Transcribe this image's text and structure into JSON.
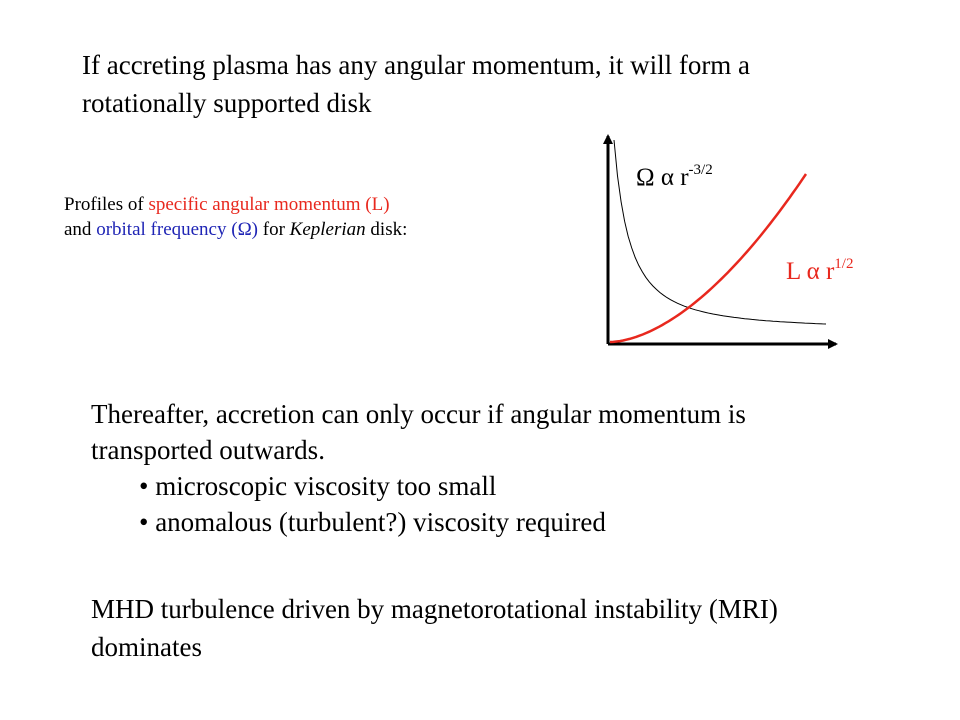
{
  "intro": {
    "line1": "If accreting plasma has any angular momentum, it will form a",
    "line2": "rotationally supported disk"
  },
  "profiles": {
    "prefix": "Profiles of ",
    "specific_label": "specific angular momentum (L)",
    "and": "and ",
    "orbital_label": "orbital frequency (Ω)",
    "for": " for ",
    "keplerian": "Keplerian",
    "suffix": " disk:"
  },
  "chart_data": {
    "type": "line",
    "series": [
      {
        "name": "Ω α r-3/2",
        "relation": "power law",
        "exponent": -1.5,
        "color": "#000000"
      },
      {
        "name": "L α r1/2",
        "relation": "power law",
        "exponent": 0.5,
        "color": "#e8281e"
      }
    ],
    "labels": {
      "omega": {
        "symbol": "Ω",
        "prop": "α",
        "base": "r",
        "exp": "-3/2"
      },
      "L": {
        "symbol": "L",
        "prop": "α",
        "base": "r",
        "exp": "1/2"
      }
    },
    "xlabel": "",
    "ylabel": "",
    "grid": false
  },
  "main": {
    "line1": "Thereafter, accretion can only occur if angular momentum is",
    "line2": "transported outwards.",
    "bullets": [
      "• microscopic viscosity too small",
      "• anomalous (turbulent?) viscosity required"
    ]
  },
  "mhd": {
    "line1": "MHD turbulence driven by magnetorotational instability (MRI)",
    "line2": "dominates"
  }
}
